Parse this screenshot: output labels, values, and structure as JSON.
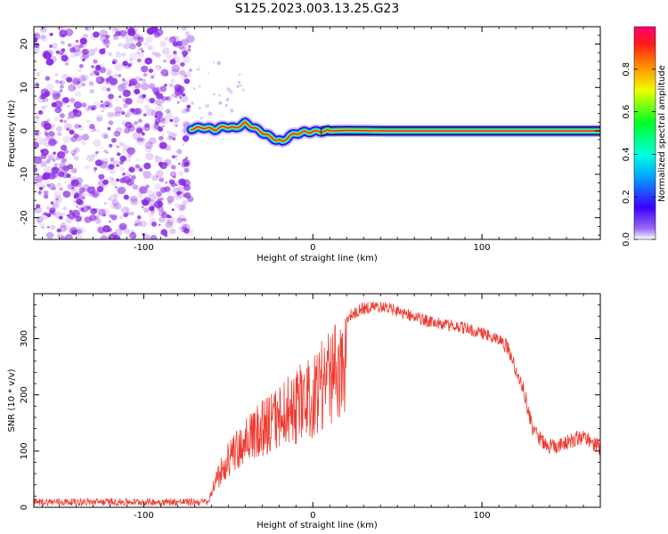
{
  "title": "S125.2023.003.13.25.G23",
  "colors": {
    "snr_line": "#ee3b30",
    "noise": "#8a2be2",
    "axis": "#000000"
  },
  "chart_data": [
    {
      "type": "heatmap",
      "xlabel": "Height of straight line (km)",
      "ylabel": "Frequency (Hz)",
      "xlim": [
        -165,
        170
      ],
      "ylim": [
        -25,
        24
      ],
      "xticks": [
        -100,
        0,
        100
      ],
      "xtick_labels": [
        "-100",
        "0",
        "100"
      ],
      "yticks": [
        -20,
        -10,
        0,
        10,
        20
      ],
      "ytick_labels": [
        "-20",
        "-10",
        "0",
        "10",
        "20"
      ],
      "noise_region_x": [
        -165,
        -72
      ],
      "ridge": {
        "x": [
          -72,
          -65,
          -58,
          -52,
          -46,
          -40,
          -34,
          -28,
          -22,
          -18,
          -14,
          -10,
          -5,
          0,
          10,
          20,
          40,
          60,
          80,
          100,
          120,
          140,
          170
        ],
        "freq": [
          0.5,
          0.8,
          0.3,
          1.0,
          0.6,
          1.8,
          0.5,
          -0.8,
          -2.0,
          -2.5,
          -1.2,
          -0.6,
          -0.3,
          -0.2,
          0.0,
          0.1,
          0.0,
          0.0,
          0.0,
          0.0,
          0.0,
          0.0,
          0.0
        ]
      },
      "colorbar": {
        "label": "Normalized spectral amplitude",
        "range": [
          0,
          1
        ],
        "ticks": [
          0.0,
          0.2,
          0.4,
          0.6,
          0.8
        ],
        "tick_labels": [
          "0.0",
          "0.2",
          "0.4",
          "0.6",
          "0.8"
        ]
      }
    },
    {
      "type": "line",
      "xlabel": "Height of straight line (km)",
      "ylabel": "SNR (10 * v/v)",
      "xlim": [
        -165,
        170
      ],
      "ylim": [
        0,
        380
      ],
      "xticks": [
        -100,
        0,
        100
      ],
      "xtick_labels": [
        "-100",
        "0",
        "100"
      ],
      "yticks": [
        0,
        100,
        200,
        300
      ],
      "ytick_labels": [
        "0",
        "100",
        "200",
        "300"
      ],
      "envelope": {
        "x": [
          -165,
          -62,
          -58,
          -50,
          -40,
          -30,
          -20,
          -10,
          0,
          10,
          20,
          30,
          40,
          50,
          60,
          70,
          80,
          90,
          100,
          110,
          115,
          120,
          125,
          130,
          140,
          150,
          160,
          170
        ],
        "y": [
          10,
          12,
          60,
          120,
          160,
          190,
          220,
          250,
          270,
          320,
          350,
          365,
          368,
          360,
          350,
          340,
          335,
          330,
          320,
          310,
          300,
          260,
          220,
          150,
          120,
          130,
          140,
          120
        ]
      }
    }
  ]
}
